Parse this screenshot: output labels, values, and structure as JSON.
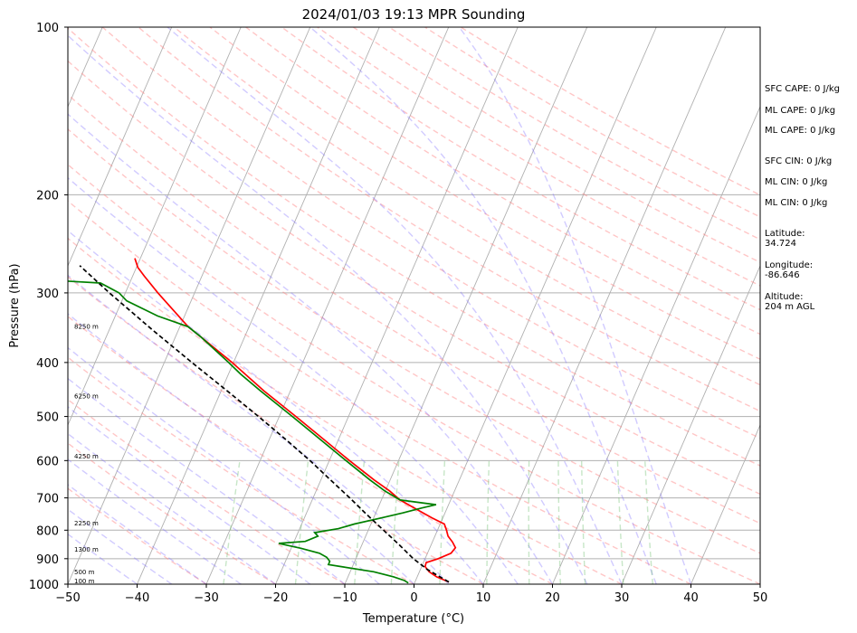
{
  "chart_data": {
    "type": "line",
    "title": "2024/01/03 19:13 MPR Sounding",
    "xlabel": "Temperature (°C)",
    "ylabel": "Pressure (hPa)",
    "x_range": [
      -50,
      50
    ],
    "y_range": [
      1000,
      100
    ],
    "y_scale": "log",
    "x_ticks": [
      -50,
      -40,
      -30,
      -20,
      -10,
      0,
      10,
      20,
      30,
      40,
      50
    ],
    "x_tick_labels": [
      "−50",
      "−40",
      "−30",
      "−20",
      "−10",
      "0",
      "10",
      "20",
      "30",
      "40",
      "50"
    ],
    "y_ticks": [
      100,
      200,
      300,
      400,
      500,
      600,
      700,
      800,
      900,
      1000
    ],
    "y_tick_labels": [
      "100",
      "200",
      "300",
      "400",
      "500",
      "600",
      "700",
      "800",
      "900",
      "1000"
    ],
    "grid": true,
    "skew": "skew-T log-P",
    "height_labels": [
      {
        "pressure": 988,
        "text": "100 m"
      },
      {
        "pressure": 952,
        "text": "500 m"
      },
      {
        "pressure": 868,
        "text": "1300 m"
      },
      {
        "pressure": 778,
        "text": "2250 m"
      },
      {
        "pressure": 590,
        "text": "4250 m"
      },
      {
        "pressure": 460,
        "text": "6250 m"
      },
      {
        "pressure": 345,
        "text": "8250 m"
      }
    ],
    "series": [
      {
        "role": "temperature",
        "color": "#ff0000",
        "points": [
          [
            991,
            4.9
          ],
          [
            970,
            2.8
          ],
          [
            950,
            1.4
          ],
          [
            930,
            0.5
          ],
          [
            915,
            0.4
          ],
          [
            900,
            1.9
          ],
          [
            880,
            3.4
          ],
          [
            860,
            3.7
          ],
          [
            840,
            2.9
          ],
          [
            820,
            1.9
          ],
          [
            800,
            1.3
          ],
          [
            780,
            0.6
          ],
          [
            760,
            -1.6
          ],
          [
            740,
            -3.7
          ],
          [
            720,
            -5.8
          ],
          [
            706,
            -7.3
          ],
          [
            680,
            -9.4
          ],
          [
            650,
            -12.3
          ],
          [
            600,
            -17.1
          ],
          [
            550,
            -22.1
          ],
          [
            500,
            -27.6
          ],
          [
            450,
            -33.8
          ],
          [
            400,
            -40.2
          ],
          [
            360,
            -46.3
          ],
          [
            345,
            -48.8
          ],
          [
            320,
            -52.3
          ],
          [
            300,
            -55.3
          ],
          [
            280,
            -58.3
          ],
          [
            270,
            -59.8
          ],
          [
            260,
            -60.8
          ]
        ]
      },
      {
        "role": "dewpoint",
        "color": "#008000",
        "points": [
          [
            995,
            -0.9
          ],
          [
            985,
            -1.6
          ],
          [
            970,
            -3.4
          ],
          [
            950,
            -6.6
          ],
          [
            930,
            -11.6
          ],
          [
            922,
            -13.6
          ],
          [
            910,
            -13.6
          ],
          [
            895,
            -14.3
          ],
          [
            880,
            -15.6
          ],
          [
            862,
            -18.6
          ],
          [
            845,
            -22.1
          ],
          [
            838,
            -18.4
          ],
          [
            820,
            -16.9
          ],
          [
            808,
            -17.6
          ],
          [
            795,
            -14.4
          ],
          [
            780,
            -12.4
          ],
          [
            760,
            -8.8
          ],
          [
            745,
            -6.1
          ],
          [
            730,
            -3.7
          ],
          [
            720,
            -1.8
          ],
          [
            706,
            -7.3
          ],
          [
            680,
            -10.1
          ],
          [
            650,
            -12.9
          ],
          [
            600,
            -17.6
          ],
          [
            550,
            -22.6
          ],
          [
            500,
            -28.1
          ],
          [
            450,
            -34.3
          ],
          [
            420,
            -38.2
          ],
          [
            400,
            -40.7
          ],
          [
            360,
            -46.3
          ],
          [
            345,
            -48.8
          ],
          [
            330,
            -53.9
          ],
          [
            310,
            -59.3
          ],
          [
            300,
            -60.9
          ],
          [
            288,
            -64.2
          ],
          [
            283,
            -75.3
          ],
          [
            279,
            -87.3
          ],
          [
            270,
            -93.9
          ],
          [
            268,
            -95.0
          ]
        ]
      },
      {
        "role": "parcel",
        "color": "#000000",
        "points": [
          [
            991,
            4.9
          ],
          [
            960,
            2.5
          ],
          [
            940,
            0.9
          ],
          [
            930,
            0.3
          ],
          [
            900,
            -1.7
          ],
          [
            850,
            -4.6
          ],
          [
            800,
            -7.8
          ],
          [
            750,
            -11.2
          ],
          [
            700,
            -14.7
          ],
          [
            650,
            -18.6
          ],
          [
            600,
            -22.8
          ],
          [
            550,
            -27.6
          ],
          [
            500,
            -33.0
          ],
          [
            450,
            -39.1
          ],
          [
            400,
            -46.0
          ],
          [
            350,
            -53.7
          ],
          [
            300,
            -62.3
          ],
          [
            268,
            -68.3
          ]
        ]
      }
    ],
    "info_panel": [
      {
        "label": "SFC CAPE: 0 J/kg"
      },
      {
        "label": "ML CAPE: 0 J/kg"
      },
      {
        "label": "ML CAPE: 0 J/kg"
      },
      {
        "label": "SFC CIN: 0 J/kg"
      },
      {
        "label": "ML CIN: 0 J/kg"
      },
      {
        "label": "ML CIN: 0 J/kg"
      },
      {
        "label": "Latitude:\n34.724"
      },
      {
        "label": "Longitude:\n-86.646"
      },
      {
        "label": "Altitude:\n204 m AGL"
      }
    ]
  }
}
